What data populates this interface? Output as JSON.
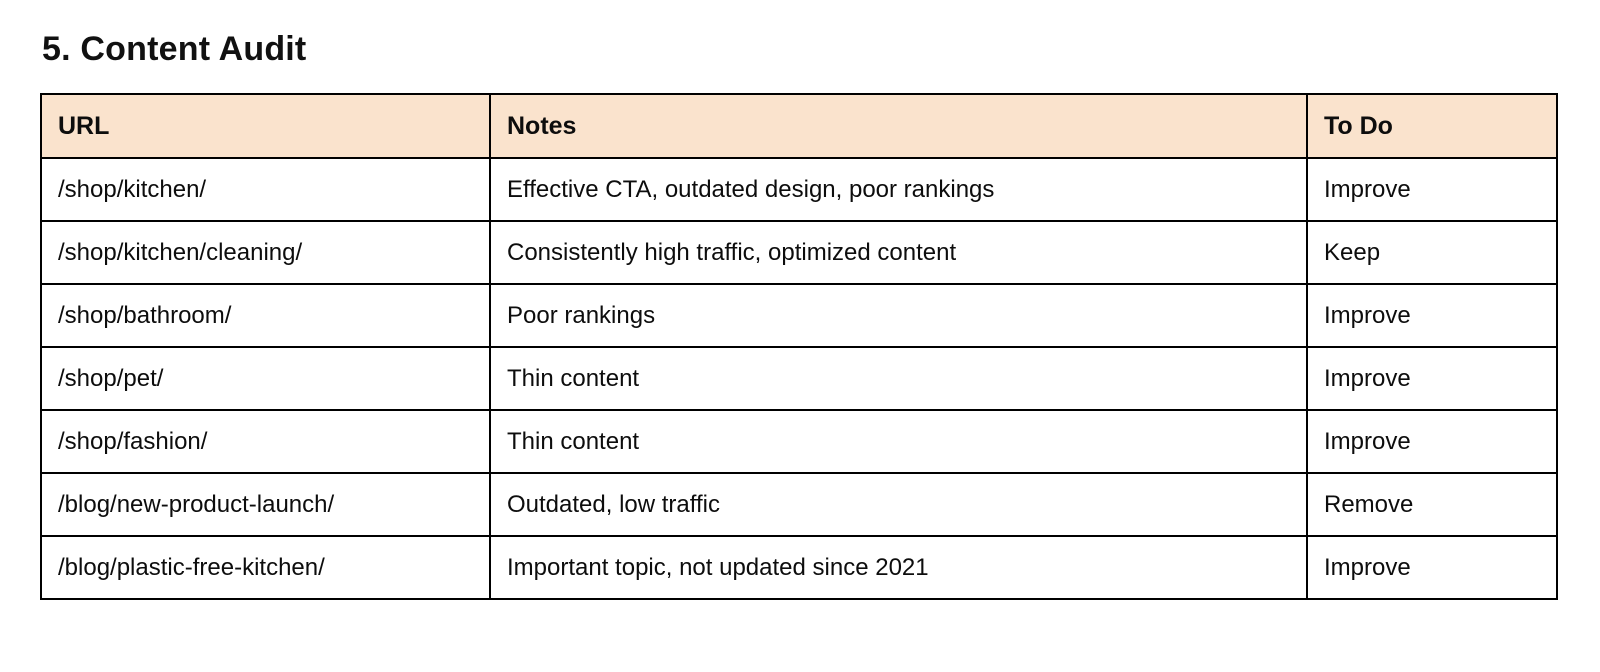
{
  "page": {
    "title": "5. Content Audit"
  },
  "table": {
    "header_bg": "#fae3cd",
    "border_color": "#000000",
    "headers": {
      "url": "URL",
      "notes": "Notes",
      "todo": "To Do"
    },
    "rows": [
      {
        "url": "/shop/kitchen/",
        "notes": "Effective CTA, outdated design, poor rankings",
        "todo": "Improve"
      },
      {
        "url": "/shop/kitchen/cleaning/",
        "notes": "Consistently high traffic, optimized content",
        "todo": "Keep"
      },
      {
        "url": "/shop/bathroom/",
        "notes": "Poor rankings",
        "todo": "Improve"
      },
      {
        "url": "/shop/pet/",
        "notes": "Thin content",
        "todo": "Improve"
      },
      {
        "url": "/shop/fashion/",
        "notes": "Thin content",
        "todo": "Improve"
      },
      {
        "url": "/blog/new-product-launch/",
        "notes": "Outdated, low traffic",
        "todo": "Remove"
      },
      {
        "url": "/blog/plastic-free-kitchen/",
        "notes": "Important topic, not updated since 2021",
        "todo": "Improve"
      }
    ]
  }
}
